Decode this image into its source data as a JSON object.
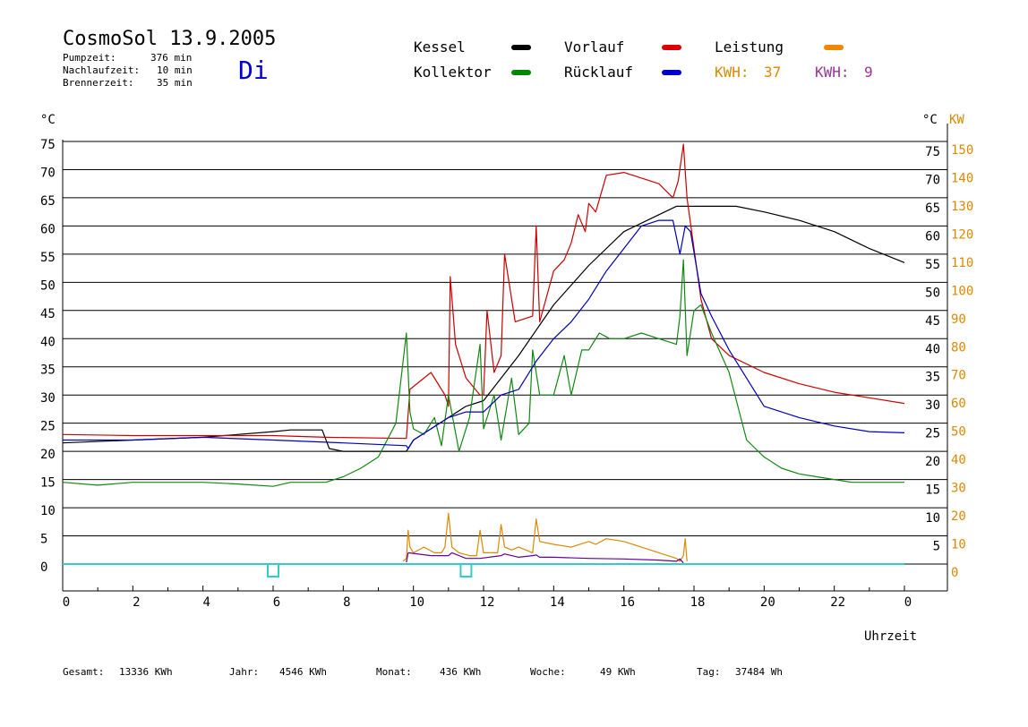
{
  "header": {
    "title": "CosmoSol 13.9.2005",
    "day": "Di",
    "stats": [
      {
        "label": "Pumpzeit:",
        "value": "376 min"
      },
      {
        "label": "Nachlaufzeit:",
        "value": "10 min"
      },
      {
        "label": "Brennerzeit:",
        "value": "35 min"
      }
    ]
  },
  "legend": {
    "kessel": {
      "label": "Kessel",
      "color": "#000000"
    },
    "vorlauf": {
      "label": "Vorlauf",
      "color": "#dd0000"
    },
    "leistung": {
      "label": "Leistung",
      "color": "#ee8800"
    },
    "kollektor": {
      "label": "Kollektor",
      "color": "#008800"
    },
    "ruecklauf": {
      "label": "Rücklauf",
      "color": "#0000cc"
    },
    "kwh1": {
      "label": "KWH:",
      "value": "37",
      "color": "#dd8800"
    },
    "kwh2": {
      "label": "KWH:",
      "value": "9",
      "color": "#993399"
    }
  },
  "colors": {
    "kessel": "#000000",
    "vorlauf": "#cc0000",
    "kollektor": "#118811",
    "ruecklauf": "#0000bb",
    "leistung": "#dd8800",
    "purple": "#660099",
    "pump": "#33cccc",
    "kw_axis": "#dd8800"
  },
  "footer": [
    {
      "label": "Gesamt:",
      "value": "13336 KWh"
    },
    {
      "label": "Jahr:",
      "value": "4546 KWh"
    },
    {
      "label": "Monat:",
      "value": "436 KWh"
    },
    {
      "label": "Woche:",
      "value": "49 KWh"
    },
    {
      "label": "Tag:",
      "value": "37484 Wh"
    }
  ],
  "chart_data": {
    "type": "line",
    "x_label": "Uhrzeit",
    "x_ticks": [
      "0",
      "2",
      "4",
      "6",
      "8",
      "10",
      "12",
      "14",
      "16",
      "18",
      "20",
      "22",
      "0"
    ],
    "xlim": [
      0,
      24
    ],
    "ylim": [
      0,
      75
    ],
    "y_unit_left": "°C",
    "y_unit_right_temp": "°C",
    "y_unit_right_power": "KW",
    "y_ticks_left": [
      75,
      70,
      65,
      60,
      55,
      50,
      45,
      40,
      35,
      30,
      25,
      20,
      15,
      10,
      5,
      0
    ],
    "y_ticks_right_temp": [
      75,
      70,
      65,
      60,
      55,
      50,
      45,
      40,
      35,
      30,
      25,
      20,
      15,
      10,
      5
    ],
    "y_ticks_right_power": [
      150,
      140,
      130,
      120,
      110,
      100,
      90,
      80,
      70,
      60,
      50,
      40,
      30,
      20,
      10,
      0
    ],
    "grid": true,
    "series": [
      {
        "name": "Kessel",
        "key": "kessel",
        "x": [
          0,
          2,
          4,
          6,
          6.5,
          7.4,
          7.6,
          8,
          9.8,
          9.85,
          10,
          11,
          11.5,
          12,
          13,
          14,
          15,
          16,
          17,
          17.5,
          18,
          19,
          19.2,
          20,
          21,
          22,
          23,
          24
        ],
        "y": [
          21.5,
          22,
          22.5,
          23.5,
          23.8,
          23.8,
          20.5,
          20,
          20,
          20.5,
          22,
          26,
          28,
          29,
          37,
          46,
          53,
          59,
          62,
          63.5,
          63.5,
          63.5,
          63.5,
          62.5,
          61,
          59,
          56,
          53.5
        ]
      },
      {
        "name": "Vorlauf",
        "key": "vorlauf",
        "x": [
          0,
          2,
          4,
          6,
          7.5,
          9.8,
          9.9,
          10.5,
          10.9,
          11,
          11.05,
          11.2,
          11.5,
          11.9,
          12,
          12.1,
          12.3,
          12.5,
          12.6,
          12.9,
          13.4,
          13.5,
          13.6,
          14,
          14.3,
          14.5,
          14.7,
          14.9,
          15,
          15.2,
          15.5,
          16,
          17,
          17.4,
          17.55,
          17.7,
          17.8,
          18.2,
          18.5,
          19,
          20,
          21,
          22,
          23,
          24
        ],
        "y": [
          23,
          22.8,
          22.8,
          22.8,
          22.5,
          22.3,
          31,
          34,
          30,
          28,
          51,
          39,
          33,
          30,
          30,
          45,
          34,
          37,
          55,
          43,
          44,
          60,
          43,
          52,
          54,
          57,
          62,
          59,
          64,
          62.5,
          69,
          69.5,
          67.5,
          65,
          68,
          74.5,
          65,
          47,
          40,
          37,
          34,
          32,
          30.5,
          29.5,
          28.5
        ]
      },
      {
        "name": "Kollektor",
        "key": "kollektor",
        "x": [
          0,
          1,
          2,
          3,
          4,
          5,
          6,
          6.5,
          7.5,
          8,
          8.5,
          9,
          9.5,
          9.8,
          9.9,
          10,
          10.3,
          10.6,
          10.8,
          11,
          11.3,
          11.6,
          11.9,
          12,
          12.3,
          12.5,
          12.8,
          13,
          13.3,
          13.4,
          13.6,
          14,
          14.3,
          14.5,
          14.8,
          15,
          15.3,
          15.6,
          16,
          16.5,
          17,
          17.5,
          17.6,
          17.7,
          17.8,
          18,
          18.2,
          18.5,
          19,
          19.5,
          20,
          20.5,
          21,
          21.5,
          22,
          22.5,
          23,
          24
        ],
        "y": [
          14.5,
          14,
          14.5,
          14.5,
          14.5,
          14.2,
          13.8,
          14.5,
          14.5,
          15.5,
          17,
          19,
          25,
          41,
          27,
          24,
          23,
          26,
          21,
          30,
          20,
          26,
          39,
          24,
          30,
          22,
          33,
          23,
          25,
          38,
          30,
          30,
          37,
          30,
          38,
          38,
          41,
          40,
          40,
          41,
          40,
          39,
          44,
          54,
          37,
          45,
          46,
          41,
          34,
          22,
          19,
          17,
          16,
          15.5,
          15,
          14.5,
          14.5,
          14.5
        ]
      },
      {
        "name": "Rücklauf",
        "key": "ruecklauf",
        "x": [
          0,
          2,
          4,
          6,
          8,
          9.8,
          9.85,
          10,
          10.5,
          11,
          11.5,
          12,
          12.5,
          13,
          13.5,
          14,
          14.5,
          15,
          15.5,
          16,
          16.5,
          17,
          17.4,
          17.6,
          17.75,
          17.9,
          18.2,
          18.5,
          19,
          20,
          21,
          22,
          23,
          24
        ],
        "y": [
          22,
          22,
          22.5,
          22,
          21.5,
          21,
          20.5,
          22,
          24,
          26,
          27,
          27,
          30,
          31,
          36,
          40,
          43,
          47,
          52,
          56,
          60,
          61,
          61,
          55,
          60,
          59,
          48,
          44,
          38,
          28,
          26,
          24.5,
          23.5,
          23.3
        ]
      },
      {
        "name": "Leistung",
        "key": "leistung",
        "x": [
          9.7,
          9.8,
          9.85,
          9.9,
          10,
          10.3,
          10.6,
          10.8,
          10.9,
          11,
          11.1,
          11.3,
          11.6,
          11.8,
          11.9,
          12,
          12.2,
          12.4,
          12.5,
          12.6,
          12.8,
          13,
          13.4,
          13.5,
          13.6,
          14,
          14.5,
          15,
          15.2,
          15.5,
          16,
          16.5,
          17,
          17.5,
          17.6,
          17.7,
          17.75,
          17.8
        ],
        "y": [
          0.5,
          1,
          6,
          3,
          2,
          3,
          2,
          2,
          3,
          9,
          3,
          2,
          1.5,
          1.5,
          6,
          2,
          2,
          2,
          7,
          3,
          2.5,
          3,
          2,
          8,
          4,
          3.5,
          3,
          4,
          3.5,
          4.5,
          4,
          3,
          2,
          1,
          0.5,
          1.5,
          4.5,
          0.5
        ]
      },
      {
        "name": "",
        "key": "purple",
        "x": [
          9.8,
          9.85,
          10.5,
          11,
          11.1,
          11.5,
          11.9,
          12.5,
          12.6,
          13,
          13.4,
          13.5,
          13.6,
          14,
          15,
          16,
          17,
          17.5,
          17.6,
          17.7
        ],
        "y": [
          0.3,
          2,
          1.5,
          1.5,
          2,
          1,
          1,
          1.5,
          1.8,
          1.2,
          1.5,
          1.6,
          1.2,
          1.2,
          1,
          0.9,
          0.7,
          0.5,
          0.9,
          0.2
        ]
      }
    ],
    "pump_markers": [
      6.0,
      11.5
    ]
  }
}
